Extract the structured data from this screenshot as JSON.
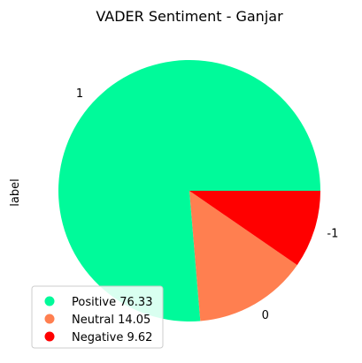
{
  "chart_data": {
    "type": "pie",
    "title": "VADER Sentiment - Ganjar",
    "ylabel": "label",
    "start_angle_deg": 0,
    "direction": "counterclockwise",
    "slices": [
      {
        "label": "1",
        "value": 76.33,
        "color": "#00FA9A"
      },
      {
        "label": "0",
        "value": 14.05,
        "color": "#FF7F50"
      },
      {
        "label": "-1",
        "value": 9.62,
        "color": "#FF0000"
      }
    ],
    "legend": {
      "placement": "lower-left",
      "entries": [
        {
          "text": "Positive 76.33",
          "color": "#00FA9A"
        },
        {
          "text": "Neutral 14.05",
          "color": "#FF7F50"
        },
        {
          "text": "Negative 9.62",
          "color": "#FF0000"
        }
      ]
    }
  }
}
